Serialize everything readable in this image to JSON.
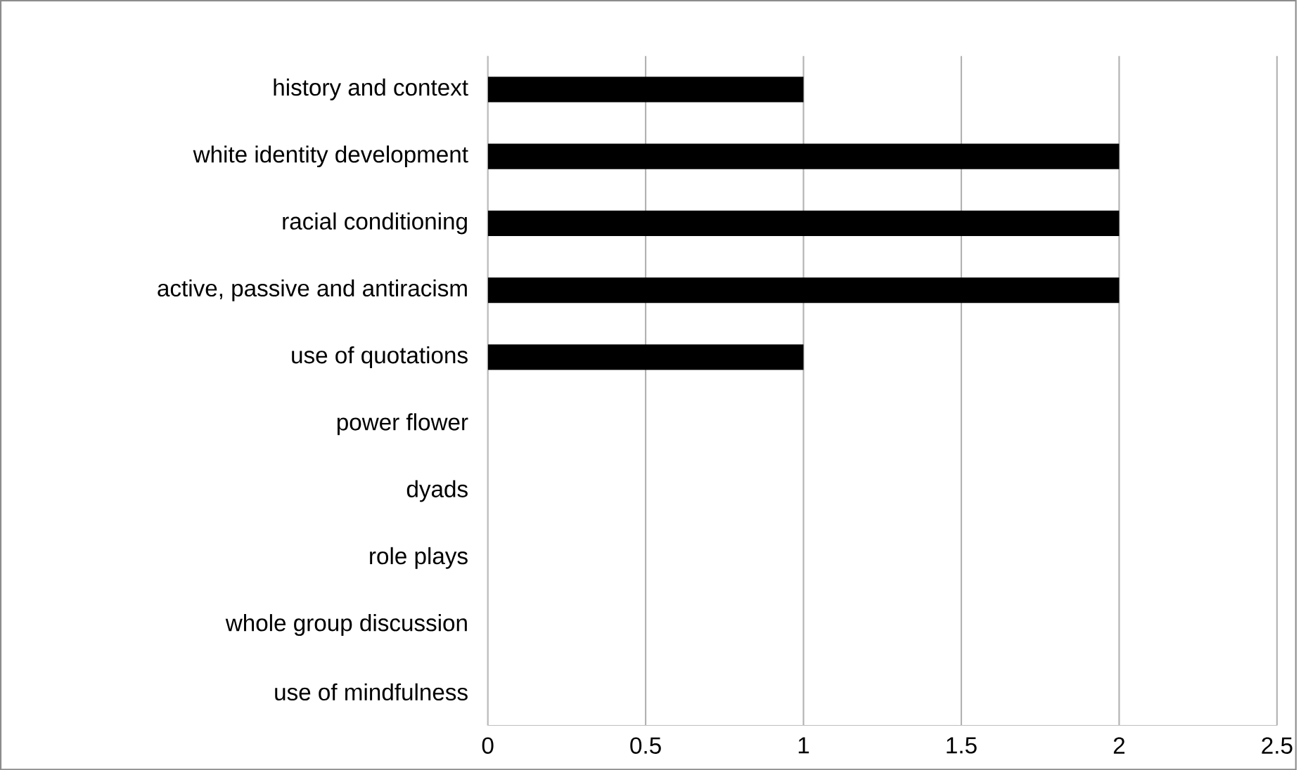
{
  "chart_data": {
    "type": "bar",
    "orientation": "horizontal",
    "categories": [
      "history and context",
      "white identity development",
      "racial conditioning",
      "active, passive and antiracism",
      "use of quotations",
      "power flower",
      "dyads",
      "role plays",
      "whole group discussion",
      "use of mindfulness"
    ],
    "values": [
      1,
      2,
      2,
      2,
      1,
      0,
      0,
      0,
      0,
      0
    ],
    "color": "#000000",
    "xlim": [
      0,
      2.5
    ],
    "xticks": [
      0,
      0.5,
      1,
      1.5,
      2,
      2.5
    ],
    "grid": "x"
  }
}
